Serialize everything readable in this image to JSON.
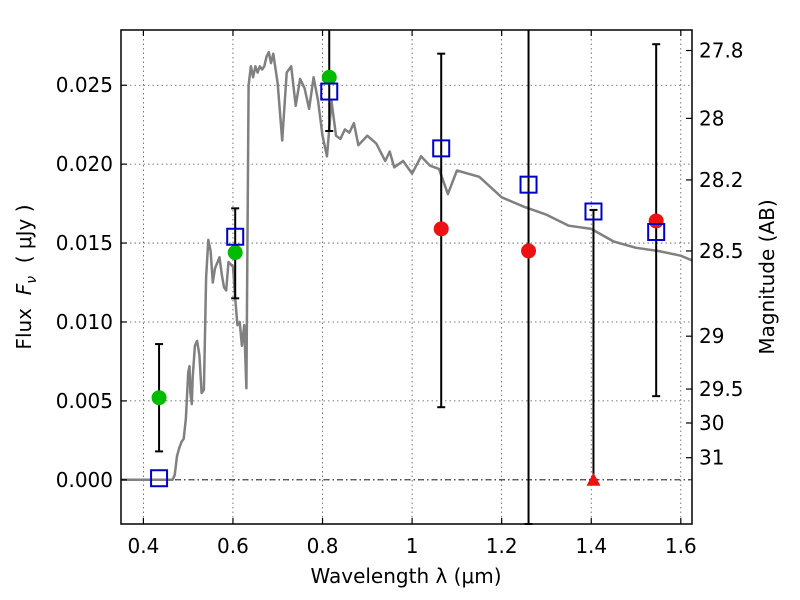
{
  "colors": {
    "sed_line": "#808080",
    "green_point": "#00bb00",
    "red_point": "#ee1111",
    "square_point": "#0000cc",
    "errorbar": "#000000",
    "grid": "#555555",
    "zero_line": "#000000"
  },
  "chart_data": {
    "type": "scatter",
    "title": "",
    "xlabel": "Wavelength  λ (μm)",
    "ylabel": "Flux  F_ν  ( μJy )",
    "ylabel_parts": {
      "prefix": "Flux  ",
      "symbol": "F",
      "subscript": "ν",
      "suffix": "  ( μJy )"
    },
    "y2label": "Magnitude (AB)",
    "xlim": [
      0.35,
      1.625
    ],
    "ylim": [
      -0.0028,
      0.0285
    ],
    "grid": true,
    "grid_style": "dotted",
    "zero_line": true,
    "xticks": [
      {
        "value": 0.4,
        "label": "0.4"
      },
      {
        "value": 0.6,
        "label": "0.6"
      },
      {
        "value": 0.8,
        "label": "0.8"
      },
      {
        "value": 1.0,
        "label": "1"
      },
      {
        "value": 1.2,
        "label": "1.2"
      },
      {
        "value": 1.4,
        "label": "1.4"
      },
      {
        "value": 1.6,
        "label": "1.6"
      }
    ],
    "yticks": [
      {
        "value": 0.0,
        "label": "0.000"
      },
      {
        "value": 0.005,
        "label": "0.005"
      },
      {
        "value": 0.01,
        "label": "0.010"
      },
      {
        "value": 0.015,
        "label": "0.015"
      },
      {
        "value": 0.02,
        "label": "0.020"
      },
      {
        "value": 0.025,
        "label": "0.025"
      }
    ],
    "y2ticks": [
      {
        "flux": 0.0272,
        "label": "27.8"
      },
      {
        "flux": 0.0229,
        "label": "28"
      },
      {
        "flux": 0.019,
        "label": "28.2"
      },
      {
        "flux": 0.0145,
        "label": "28.5"
      },
      {
        "flux": 0.0091,
        "label": "29"
      },
      {
        "flux": 0.00575,
        "label": "29.5"
      },
      {
        "flux": 0.0036,
        "label": "30"
      },
      {
        "flux": 0.0014,
        "label": "31"
      }
    ],
    "sed_model": {
      "x": [
        0.35,
        0.465,
        0.47,
        0.475,
        0.48,
        0.485,
        0.49,
        0.495,
        0.5,
        0.503,
        0.505,
        0.508,
        0.51,
        0.515,
        0.52,
        0.525,
        0.53,
        0.535,
        0.54,
        0.545,
        0.55,
        0.555,
        0.56,
        0.57,
        0.575,
        0.58,
        0.585,
        0.59,
        0.6,
        0.605,
        0.61,
        0.615,
        0.62,
        0.625,
        0.63,
        0.635,
        0.64,
        0.645,
        0.65,
        0.655,
        0.66,
        0.665,
        0.67,
        0.675,
        0.68,
        0.685,
        0.69,
        0.7,
        0.71,
        0.72,
        0.73,
        0.74,
        0.75,
        0.76,
        0.77,
        0.78,
        0.79,
        0.8,
        0.81,
        0.82,
        0.83,
        0.84,
        0.85,
        0.86,
        0.87,
        0.88,
        0.9,
        0.92,
        0.94,
        0.95,
        0.96,
        0.98,
        1.0,
        1.02,
        1.04,
        1.06,
        1.08,
        1.1,
        1.15,
        1.2,
        1.25,
        1.3,
        1.35,
        1.4,
        1.45,
        1.5,
        1.55,
        1.6,
        1.625
      ],
      "y": [
        0.0,
        0.0,
        0.0003,
        0.0015,
        0.002,
        0.0024,
        0.0026,
        0.0039,
        0.0068,
        0.0072,
        0.0055,
        0.0048,
        0.0065,
        0.0085,
        0.0088,
        0.0079,
        0.0055,
        0.0057,
        0.0128,
        0.0152,
        0.0145,
        0.0125,
        0.0134,
        0.0141,
        0.013,
        0.0122,
        0.012,
        0.0138,
        0.0135,
        0.0115,
        0.0098,
        0.01,
        0.0085,
        0.0098,
        0.0058,
        0.025,
        0.0262,
        0.0255,
        0.0262,
        0.0258,
        0.0262,
        0.026,
        0.0262,
        0.0268,
        0.0271,
        0.0264,
        0.027,
        0.0251,
        0.0215,
        0.0258,
        0.0262,
        0.0237,
        0.0254,
        0.0248,
        0.0235,
        0.0255,
        0.024,
        0.0218,
        0.0205,
        0.024,
        0.0218,
        0.0216,
        0.0222,
        0.022,
        0.0226,
        0.0212,
        0.0218,
        0.0213,
        0.0202,
        0.0208,
        0.0198,
        0.0202,
        0.0194,
        0.0205,
        0.0199,
        0.0197,
        0.0181,
        0.0196,
        0.0192,
        0.0179,
        0.0173,
        0.0168,
        0.0161,
        0.0159,
        0.0151,
        0.0147,
        0.0145,
        0.0142,
        0.0139
      ]
    },
    "green_points": {
      "x": [
        0.435,
        0.605,
        0.815
      ],
      "y": [
        0.0052,
        0.0144,
        0.0255
      ],
      "err_low": [
        0.0018,
        0.0115,
        0.0221
      ],
      "err_high": [
        0.0086,
        0.0172,
        0.0286
      ]
    },
    "red_points": {
      "x": [
        1.065,
        1.26,
        1.545
      ],
      "y": [
        0.0159,
        0.0145,
        0.0164
      ],
      "err_low": [
        0.0046,
        -0.0028,
        0.0053
      ],
      "err_high": [
        0.027,
        0.0286,
        0.0276
      ]
    },
    "upper_limit_point": {
      "x": 1.405,
      "y": 0.0,
      "err_low": 0.0,
      "err_high": 0.0171
    },
    "model_squares": {
      "x": [
        0.435,
        0.605,
        0.815,
        1.065,
        1.26,
        1.405,
        1.545
      ],
      "y": [
        0.0001,
        0.0154,
        0.0246,
        0.021,
        0.0187,
        0.017,
        0.0157
      ]
    }
  }
}
